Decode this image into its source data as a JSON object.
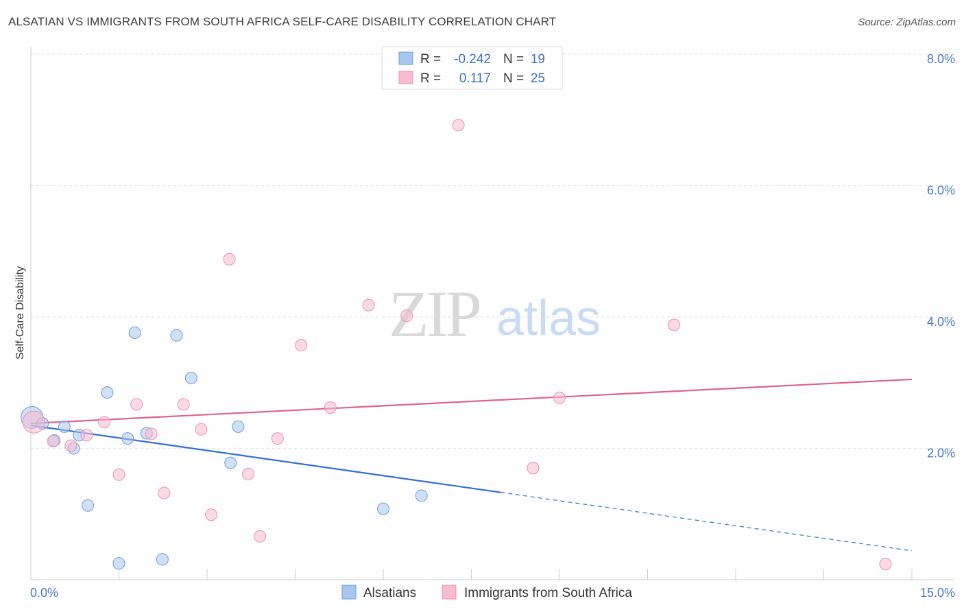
{
  "title": "ALSATIAN VS IMMIGRANTS FROM SOUTH AFRICA SELF-CARE DISABILITY CORRELATION CHART",
  "source": "Source: ZipAtlas.com",
  "watermark": {
    "zip": "ZIP",
    "atlas": "atlas"
  },
  "chart_data": {
    "type": "scatter",
    "ylabel": "Self-Care Disability",
    "xlim": [
      0,
      15
    ],
    "ylim": [
      0,
      8.3
    ],
    "x_ticks": [
      {
        "value": 0,
        "label": "0.0%"
      },
      {
        "value": 15,
        "label": "15.0%"
      }
    ],
    "y_ticks": [
      {
        "value": 2,
        "label": "2.0%"
      },
      {
        "value": 4,
        "label": "4.0%"
      },
      {
        "value": 6,
        "label": "6.0%"
      },
      {
        "value": 8,
        "label": "8.0%"
      }
    ],
    "grid": true,
    "legend_position": "top-center",
    "series": [
      {
        "name": "Alsatians",
        "color": "#a9c6f0",
        "stroke": "#6b9be0",
        "line_color": "#2f6fd6",
        "r_label": "R =",
        "r_value": "-0.242",
        "n_label": "N =",
        "n_value": "19",
        "trend": {
          "x0": 0,
          "y0": 2.35,
          "x1": 8.0,
          "y1": 1.33,
          "dash_x1": 15,
          "dash_y1": 0.44
        },
        "points": [
          {
            "x": 0.02,
            "y": 2.47,
            "big": true
          },
          {
            "x": 0.2,
            "y": 2.38
          },
          {
            "x": 0.4,
            "y": 2.12
          },
          {
            "x": 0.57,
            "y": 2.33
          },
          {
            "x": 0.73,
            "y": 2.0
          },
          {
            "x": 0.82,
            "y": 2.2
          },
          {
            "x": 0.97,
            "y": 1.13
          },
          {
            "x": 1.3,
            "y": 2.85
          },
          {
            "x": 1.5,
            "y": 0.25
          },
          {
            "x": 1.65,
            "y": 2.15
          },
          {
            "x": 1.77,
            "y": 3.76
          },
          {
            "x": 1.97,
            "y": 2.23
          },
          {
            "x": 2.24,
            "y": 0.31
          },
          {
            "x": 2.48,
            "y": 3.72
          },
          {
            "x": 2.73,
            "y": 3.07
          },
          {
            "x": 3.4,
            "y": 1.78
          },
          {
            "x": 3.53,
            "y": 2.33
          },
          {
            "x": 6.0,
            "y": 1.08
          },
          {
            "x": 6.65,
            "y": 1.28
          }
        ]
      },
      {
        "name": "Immigrants from South Africa",
        "color": "#f7bcd0",
        "stroke": "#ec8fb0",
        "line_color": "#e0628f",
        "r_label": "R =",
        "r_value": "0.117",
        "n_label": "N =",
        "n_value": "25",
        "trend": {
          "x0": 0,
          "y0": 2.38,
          "x1": 15,
          "y1": 3.05
        },
        "points": [
          {
            "x": 0.05,
            "y": 2.4,
            "big": true
          },
          {
            "x": 0.38,
            "y": 2.11
          },
          {
            "x": 0.68,
            "y": 2.04
          },
          {
            "x": 0.95,
            "y": 2.2
          },
          {
            "x": 1.25,
            "y": 2.4
          },
          {
            "x": 1.5,
            "y": 1.6
          },
          {
            "x": 1.8,
            "y": 2.67
          },
          {
            "x": 2.05,
            "y": 2.22
          },
          {
            "x": 2.27,
            "y": 1.32
          },
          {
            "x": 2.6,
            "y": 2.67
          },
          {
            "x": 2.9,
            "y": 2.29
          },
          {
            "x": 3.07,
            "y": 0.99
          },
          {
            "x": 3.38,
            "y": 4.88
          },
          {
            "x": 3.7,
            "y": 1.61
          },
          {
            "x": 3.9,
            "y": 0.66
          },
          {
            "x": 4.2,
            "y": 2.15
          },
          {
            "x": 4.6,
            "y": 3.57
          },
          {
            "x": 5.1,
            "y": 2.62
          },
          {
            "x": 5.75,
            "y": 4.18
          },
          {
            "x": 6.4,
            "y": 4.02
          },
          {
            "x": 7.28,
            "y": 6.92
          },
          {
            "x": 8.55,
            "y": 1.7
          },
          {
            "x": 9.0,
            "y": 2.77
          },
          {
            "x": 10.95,
            "y": 3.88
          },
          {
            "x": 14.55,
            "y": 0.24
          }
        ]
      }
    ]
  }
}
